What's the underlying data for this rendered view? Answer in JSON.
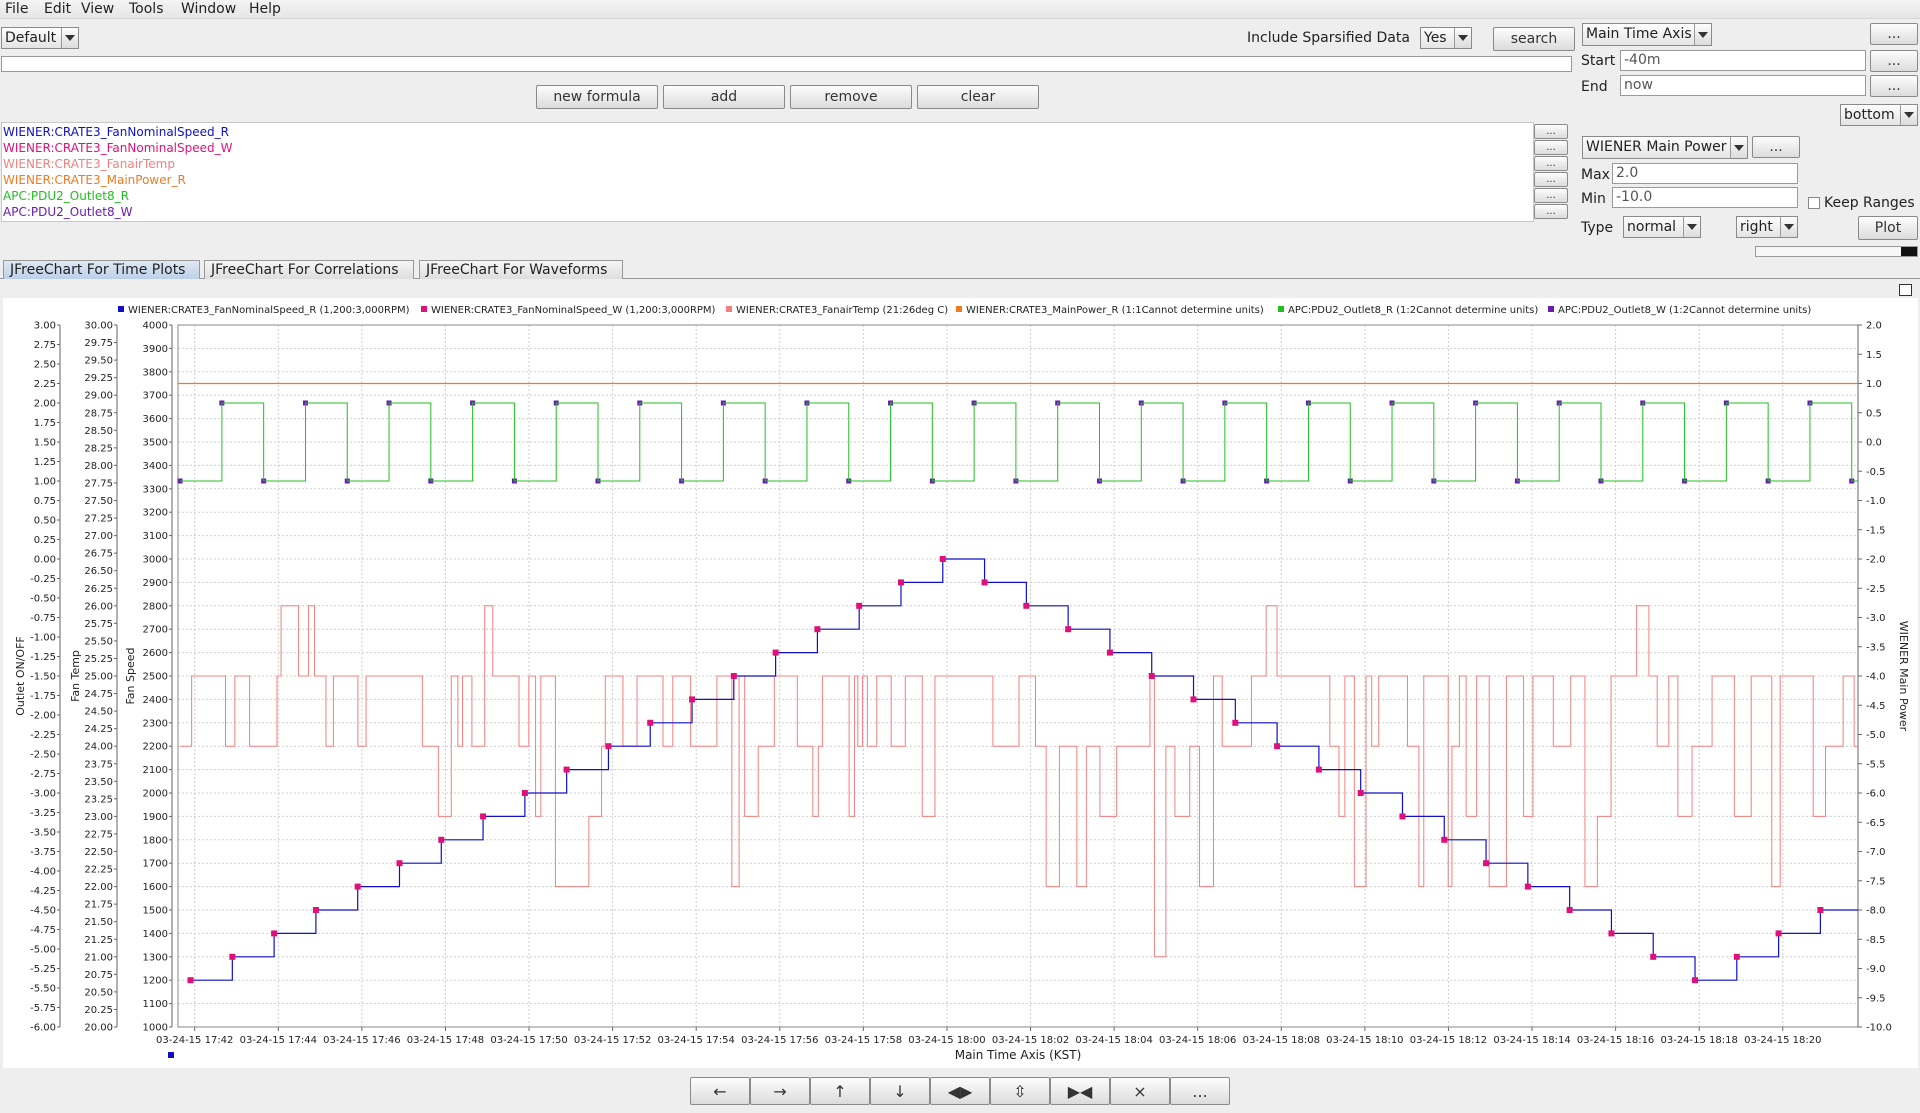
{
  "menu": [
    "File",
    "Edit",
    "View",
    "Tools",
    "Window",
    "Help"
  ],
  "toolbar": {
    "preset": "Default",
    "sparsified_label": "Include Sparsified Data",
    "sparsified_value": "Yes",
    "search": "search",
    "new_formula": "new formula",
    "add": "add",
    "remove": "remove",
    "clear": "clear"
  },
  "pvs": [
    {
      "name": "WIENER:CRATE3_FanNominalSpeed_R",
      "color": "#1010c8"
    },
    {
      "name": "WIENER:CRATE3_FanNominalSpeed_W",
      "color": "#e0107a"
    },
    {
      "name": "WIENER:CRATE3_FanairTemp",
      "color": "#f08080"
    },
    {
      "name": "WIENER:CRATE3_MainPower_R",
      "color": "#f07a20"
    },
    {
      "name": "APC:PDU2_Outlet8_R",
      "color": "#20c020"
    },
    {
      "name": "APC:PDU2_Outlet8_W",
      "color": "#6a1cb0"
    }
  ],
  "time_panel": {
    "axis": "Main Time Axis",
    "start_label": "Start",
    "start_value": "-40m",
    "end_label": "End",
    "end_value": "now",
    "legend_pos": "bottom",
    "more": "..."
  },
  "axis_panel": {
    "axis": "WIENER Main Power",
    "max_label": "Max",
    "max_value": "2.0",
    "min_label": "Min",
    "min_value": "-10.0",
    "keep_ranges": "Keep Ranges",
    "type_label": "Type",
    "type_value": "normal",
    "side_value": "right",
    "plot": "Plot"
  },
  "tabs": [
    "JFreeChart For Time Plots",
    "JFreeChart For Correlations",
    "JFreeChart For Waveforms"
  ],
  "chart_data": {
    "type": "line",
    "legend": [
      {
        "label": "WIENER:CRATE3_FanNominalSpeed_R (1,200:3,000RPM)",
        "color": "#1010c8"
      },
      {
        "label": "WIENER:CRATE3_FanNominalSpeed_W (1,200:3,000RPM)",
        "color": "#e0107a"
      },
      {
        "label": "WIENER:CRATE3_FanairTemp (21:26deg C)",
        "color": "#f08080"
      },
      {
        "label": "WIENER:CRATE3_MainPower_R (1:1Cannot determine units)",
        "color": "#f07a20"
      },
      {
        "label": "APC:PDU2_Outlet8_R (1:2Cannot determine units)",
        "color": "#20c020"
      },
      {
        "label": "APC:PDU2_Outlet8_W (1:2Cannot determine units)",
        "color": "#6a1cb0"
      }
    ],
    "xlabel": "Main Time Axis (KST)",
    "x_ticks": [
      "03-24-15 17:42",
      "03-24-15 17:44",
      "03-24-15 17:46",
      "03-24-15 17:48",
      "03-24-15 17:50",
      "03-24-15 17:52",
      "03-24-15 17:54",
      "03-24-15 17:56",
      "03-24-15 17:58",
      "03-24-15 18:00",
      "03-24-15 18:02",
      "03-24-15 18:04",
      "03-24-15 18:06",
      "03-24-15 18:08",
      "03-24-15 18:10",
      "03-24-15 18:12",
      "03-24-15 18:14",
      "03-24-15 18:16",
      "03-24-15 18:18",
      "03-24-15 18:20"
    ],
    "axes": [
      {
        "label": "Outlet ON/OFF",
        "range": [
          -6,
          3
        ],
        "step": 0.25,
        "decimals": 2
      },
      {
        "label": "Fan Temp",
        "range": [
          20,
          30
        ],
        "step": 0.25,
        "decimals": 2
      },
      {
        "label": "Fan Speed",
        "range": [
          1000,
          4000
        ],
        "step": 100,
        "decimals": 0
      },
      {
        "label": "WIENER Main Power",
        "range": [
          -10,
          2
        ],
        "step": 0.5,
        "decimals": 1
      }
    ],
    "x_minutes_start": "17:41.6",
    "speed_steps_rpm": [
      1200,
      1300,
      1400,
      1500,
      1600,
      1700,
      1800,
      1900,
      2000,
      2100,
      2200,
      2300,
      2400,
      2500,
      2600,
      2700,
      2800,
      2900,
      3000,
      2900,
      2800,
      2700,
      2600,
      2500,
      2400,
      2300,
      2200,
      2100,
      2000,
      1900,
      1800,
      1700,
      1600,
      1500,
      1400,
      1300,
      1200,
      1300,
      1400,
      1500
    ],
    "main_power": 1.0,
    "outlet_levels": [
      1,
      2
    ],
    "fan_temp_levels": [
      21,
      22,
      23,
      24,
      25,
      26
    ]
  },
  "nav": [
    "←",
    "→",
    "↑",
    "↓",
    "◀▶",
    "⇳",
    "▶◀",
    "⨯",
    "..."
  ]
}
